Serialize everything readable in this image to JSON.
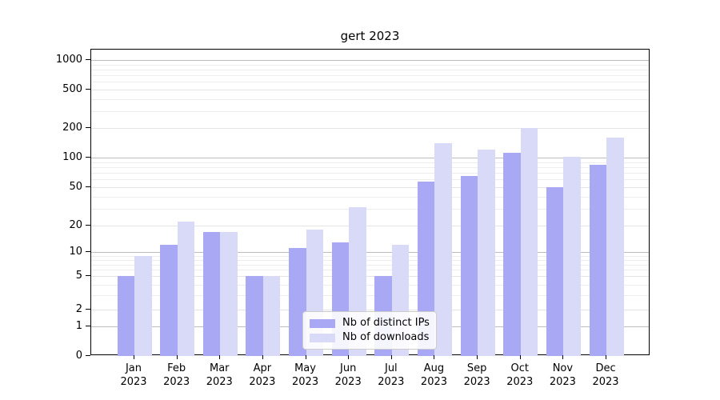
{
  "figure": {
    "title": "gert 2023"
  },
  "chart_data": {
    "type": "bar",
    "title": "gert 2023",
    "xlabel": "",
    "ylabel": "",
    "categories": [
      "Jan",
      "Feb",
      "Mar",
      "Apr",
      "May",
      "Jun",
      "Jul",
      "Aug",
      "Sep",
      "Oct",
      "Nov",
      "Dec"
    ],
    "x_tick_second_line": "2023",
    "series": [
      {
        "name": "Nb of distinct IPs",
        "color": "#a8a8f5",
        "values": [
          5,
          12,
          17,
          5,
          11,
          13,
          5,
          57,
          65,
          112,
          50,
          85
        ]
      },
      {
        "name": "Nb of downloads",
        "color": "#d9d9f8",
        "values": [
          9,
          22,
          17,
          5,
          18,
          31,
          12,
          140,
          120,
          200,
          102,
          160
        ]
      }
    ],
    "y_ticks": [
      0,
      1,
      2,
      5,
      10,
      20,
      50,
      100,
      200,
      500,
      1000
    ],
    "y_minor_ticks": [
      3,
      4,
      6,
      7,
      8,
      9,
      30,
      40,
      60,
      70,
      80,
      90,
      300,
      400,
      600,
      700,
      800,
      900
    ],
    "yscale": "symlog",
    "ylim": [
      0,
      1300
    ],
    "grid": true,
    "legend_position": "lower center",
    "colors": {
      "major_gridline": "#bdbdbd",
      "mid_gridline": "#e4e4e4",
      "minor_gridline": "#ededed",
      "axis": "#000000"
    }
  }
}
